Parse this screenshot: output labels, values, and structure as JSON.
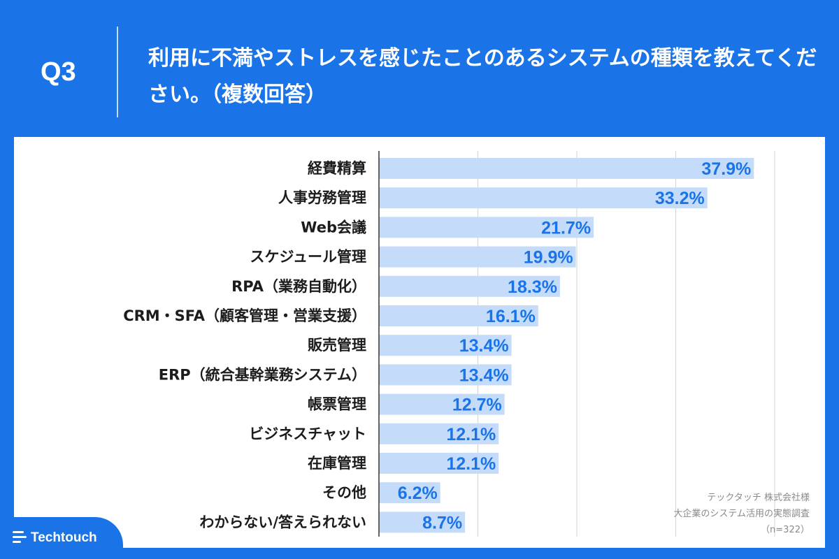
{
  "header": {
    "question_number": "Q3",
    "question_text": "利用に不満やストレスを感じたことのあるシステムの種類を教えてください。（複数回答）"
  },
  "chart_data": {
    "type": "bar",
    "orientation": "horizontal",
    "categories": [
      "経費精算",
      "人事労務管理",
      "Web会議",
      "スケジュール管理",
      "RPA（業務自動化）",
      "CRM・SFA（顧客管理・営業支援）",
      "販売管理",
      "ERP（統合基幹業務システム）",
      "帳票管理",
      "ビジネスチャット",
      "在庫管理",
      "その他",
      "わからない/答えられない"
    ],
    "values": [
      37.9,
      33.2,
      21.7,
      19.9,
      18.3,
      16.1,
      13.4,
      13.4,
      12.7,
      12.1,
      12.1,
      6.2,
      8.7
    ],
    "value_labels": [
      "37.9%",
      "33.2%",
      "21.7%",
      "19.9%",
      "18.3%",
      "16.1%",
      "13.4%",
      "13.4%",
      "12.7%",
      "12.1%",
      "12.1%",
      "6.2%",
      "8.7%"
    ],
    "xlim": [
      0,
      40
    ],
    "grid": true,
    "bar_color": "#c4dcfa",
    "label_color": "#1a74e8"
  },
  "source": {
    "line1": "テックタッチ 株式会社様",
    "line2": "大企業のシステム活用の実態調査",
    "line3": "（n=322）"
  },
  "brand": {
    "name": "Techtouch"
  }
}
